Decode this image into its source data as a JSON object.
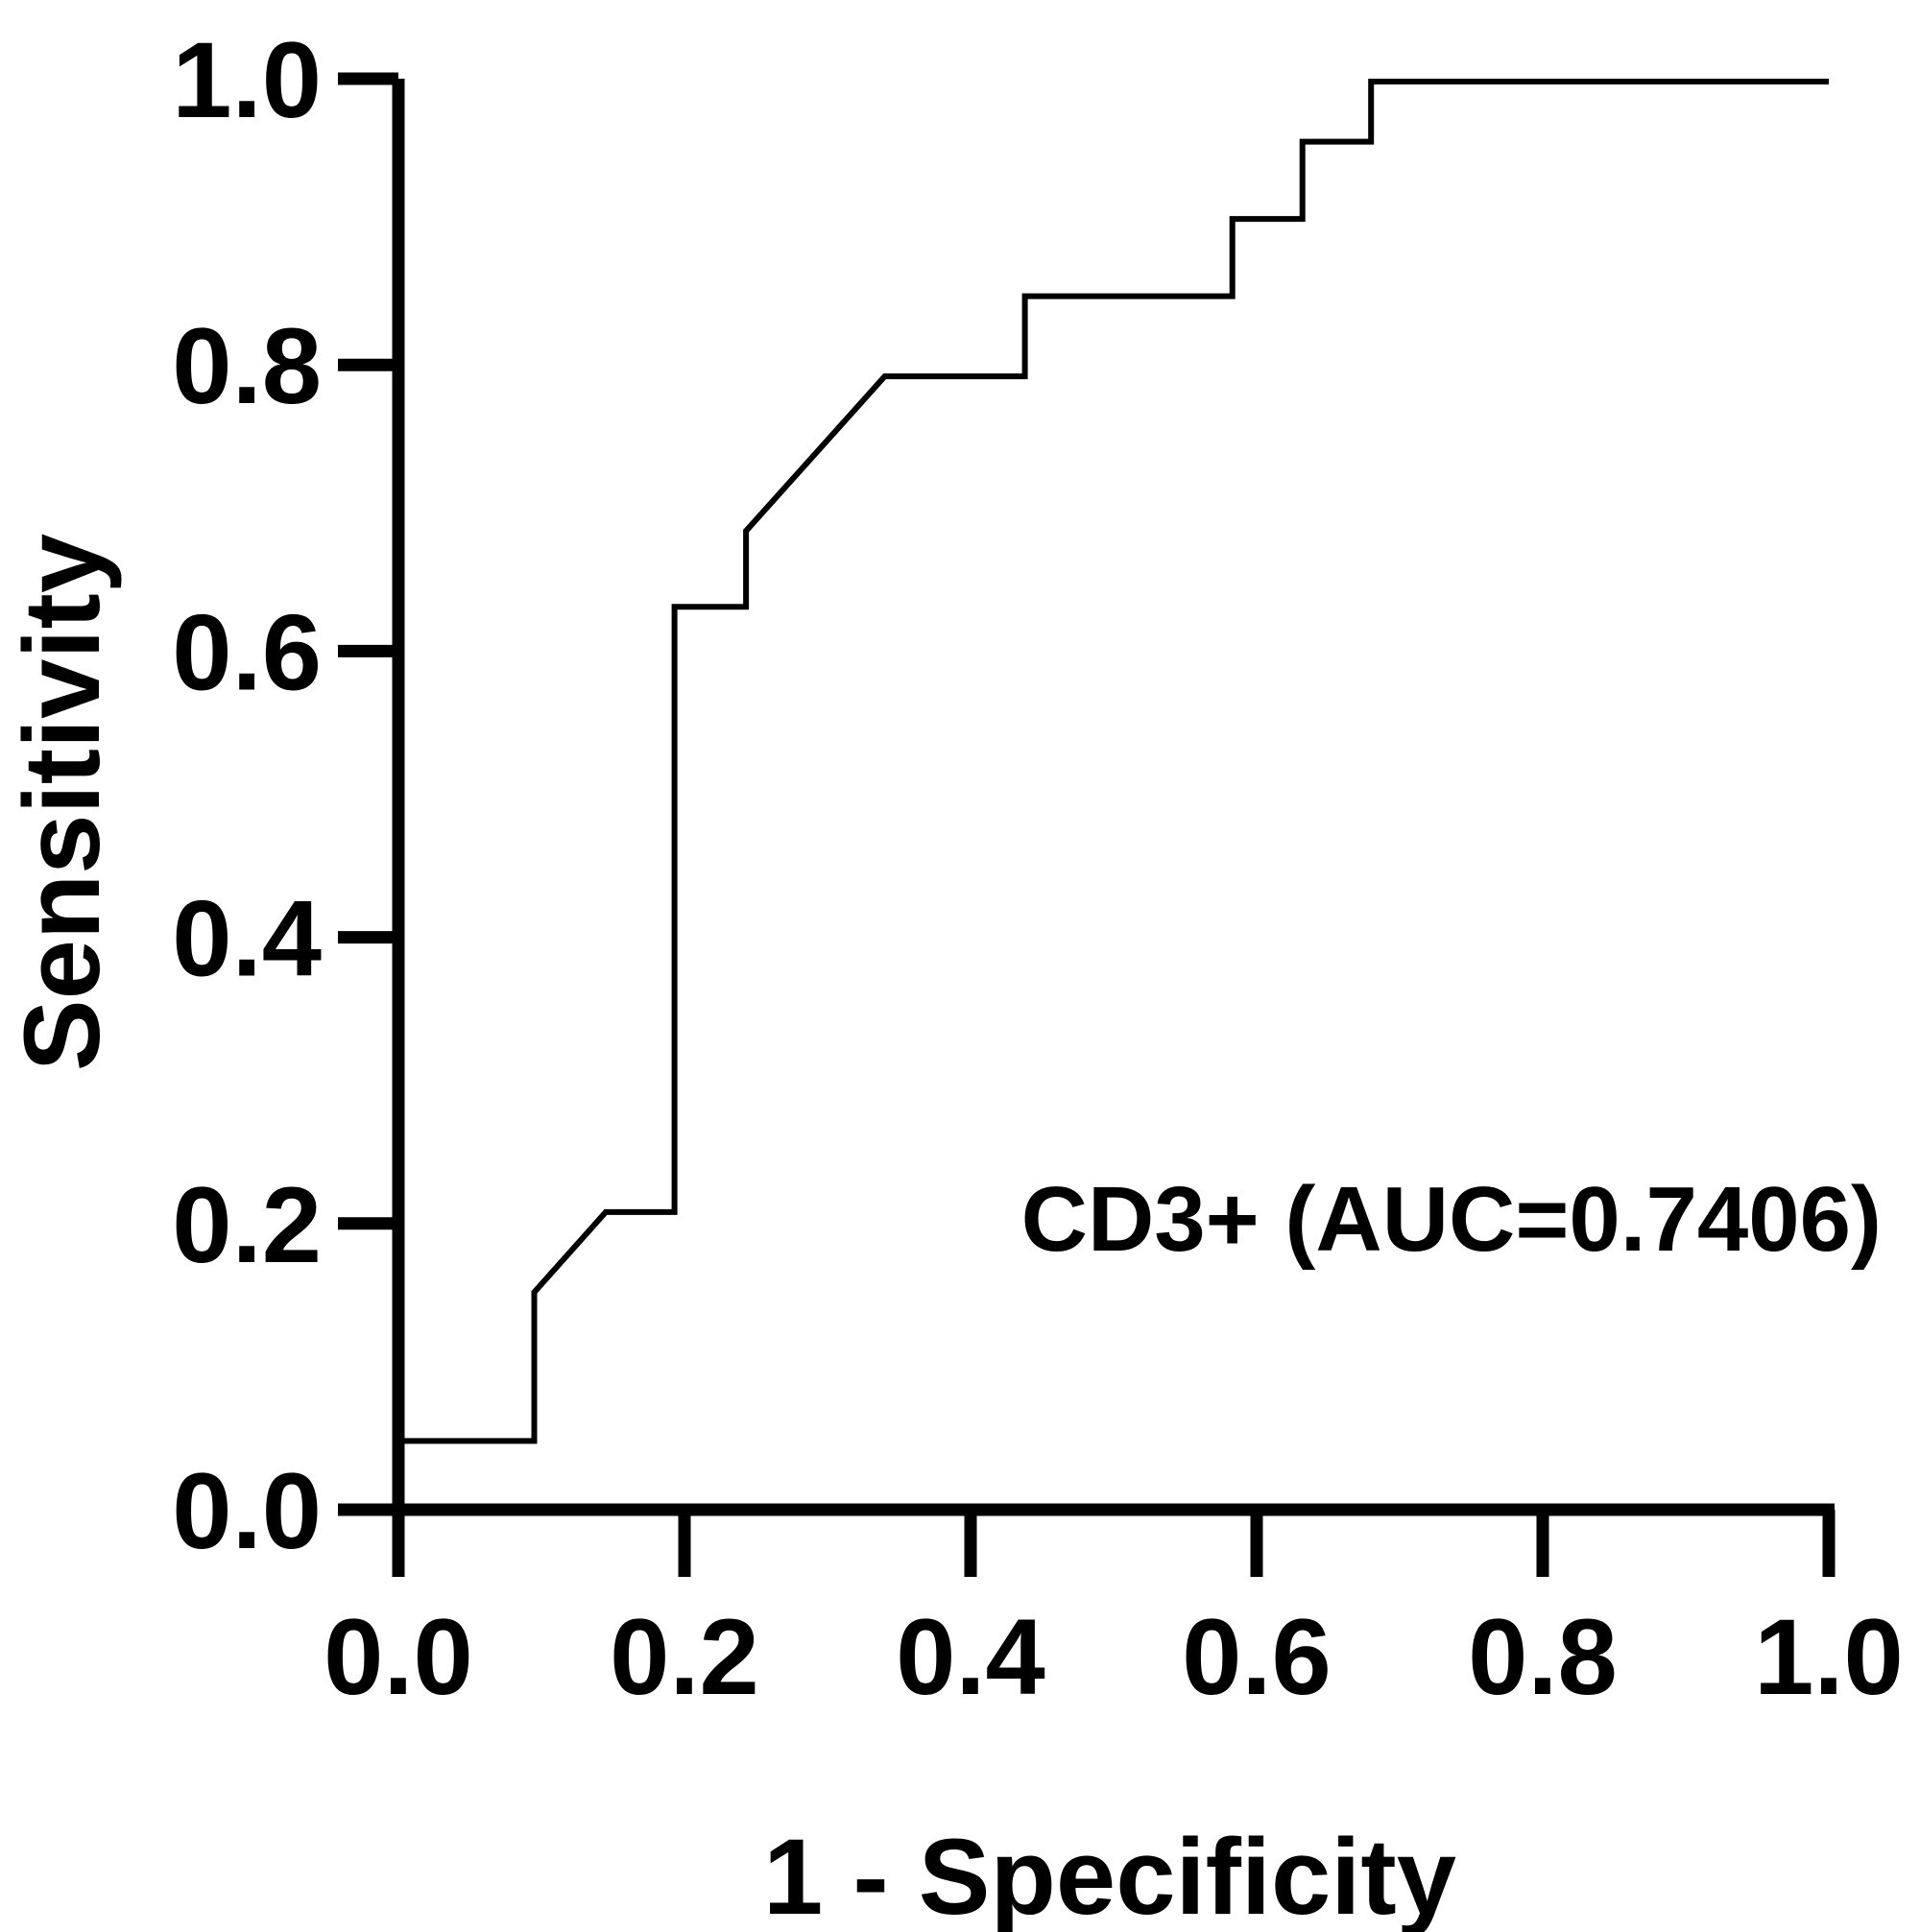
{
  "chart_data": {
    "type": "line",
    "title": "",
    "xlabel": "1 - Specificity",
    "ylabel": "Sensitivity",
    "xlim": [
      0,
      1
    ],
    "ylim": [
      0,
      1
    ],
    "x_ticks": [
      "0.0",
      "0.2",
      "0.4",
      "0.6",
      "0.8",
      "1.0"
    ],
    "y_ticks": [
      "0.0",
      "0.2",
      "0.4",
      "0.6",
      "0.8",
      "1.0"
    ],
    "x_tick_values": [
      0,
      0.2,
      0.4,
      0.6,
      0.8,
      1.0
    ],
    "y_tick_values": [
      0,
      0.2,
      0.4,
      0.6,
      0.8,
      1.0
    ],
    "grid": false,
    "annotation": "CD3+ (AUC=0.7406)",
    "series": [
      {
        "name": "CD3+",
        "color": "#000000",
        "x": [
          0,
          0,
          0.095,
          0.095,
          0.145,
          0.193,
          0.193,
          0.243,
          0.243,
          0.34,
          0.438,
          0.438,
          0.583,
          0.583,
          0.632,
          0.632,
          0.68,
          0.68,
          1.0
        ],
        "y": [
          0,
          0.048,
          0.048,
          0.152,
          0.208,
          0.208,
          0.631,
          0.631,
          0.684,
          0.792,
          0.792,
          0.848,
          0.848,
          0.902,
          0.902,
          0.956,
          0.956,
          0.998,
          0.998
        ]
      }
    ]
  }
}
